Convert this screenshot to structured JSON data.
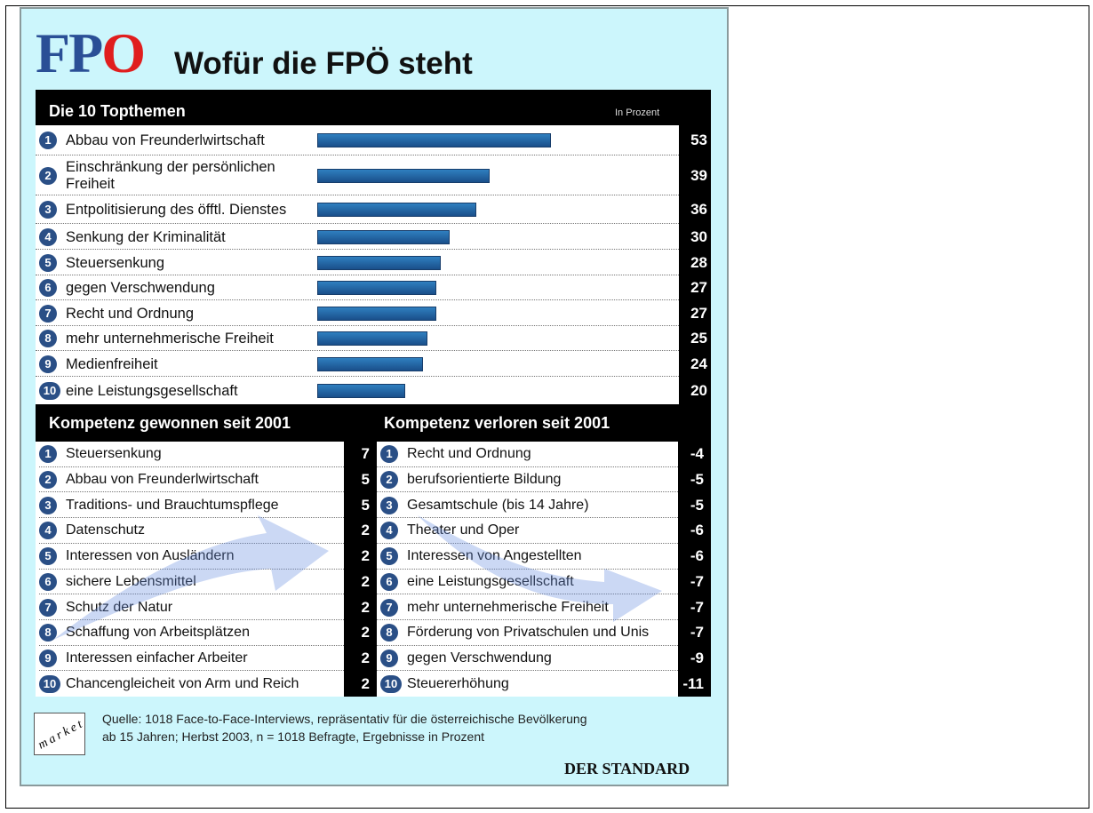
{
  "header": {
    "logo_a": "FP",
    "logo_b": "O",
    "title": "Wofür die FPÖ steht"
  },
  "ranks": [
    1,
    2,
    3,
    4,
    5,
    6,
    7,
    8,
    9,
    10
  ],
  "chart_data": {
    "type": "bar",
    "title": "Die 10 Topthemen",
    "unit_label": "In Prozent",
    "categories": [
      "Abbau von Freunderlwirtschaft",
      "Einschränkung der persönlichen Freiheit",
      "Entpolitisierung des öfftl. Dienstes",
      "Senkung der Kriminalität",
      "Steuersenkung",
      "gegen Verschwendung",
      "Recht und Ordnung",
      "mehr unternehmerische Freiheit",
      "Medienfreiheit",
      "eine Leistungsgesellschaft"
    ],
    "values": [
      53,
      39,
      36,
      30,
      28,
      27,
      27,
      25,
      24,
      20
    ],
    "color": "#2f7fc0"
  },
  "gained": {
    "title": "Kompetenz gewonnen seit 2001",
    "categories": [
      "Steuersenkung",
      "Abbau von Freunderlwirtschaft",
      "Traditions- und Brauchtumspflege",
      "Datenschutz",
      "Interessen von Ausländern",
      "sichere Lebensmittel",
      "Schutz der Natur",
      "Schaffung von Arbeitsplätzen",
      "Interessen einfacher Arbeiter",
      "Chancengleicheit von Arm und Reich"
    ],
    "values": [
      7,
      5,
      5,
      2,
      2,
      2,
      2,
      2,
      2,
      2
    ]
  },
  "lost": {
    "title": "Kompetenz verloren seit 2001",
    "categories": [
      "Recht und Ordnung",
      "berufsorientierte Bildung",
      "Gesamtschule (bis 14 Jahre)",
      "Theater und Oper",
      "Interessen von Angestellten",
      "eine Leistungsgesellschaft",
      "mehr unternehmerische Freiheit",
      "Förderung von Privatschulen und Unis",
      "gegen Verschwendung",
      "Steuererhöhung"
    ],
    "values": [
      -4,
      -5,
      -5,
      -6,
      -6,
      -7,
      -7,
      -7,
      -9,
      -11
    ]
  },
  "footer": {
    "institute": "market",
    "source_lines": [
      "Quelle: 1018 Face-to-Face-Interviews, repräsentativ für die österreichische Bevölkerung",
      "ab 15 Jahren; Herbst 2003, n = 1018 Befragte, Ergebnisse in Prozent"
    ],
    "publisher": "DER STANDARD"
  }
}
